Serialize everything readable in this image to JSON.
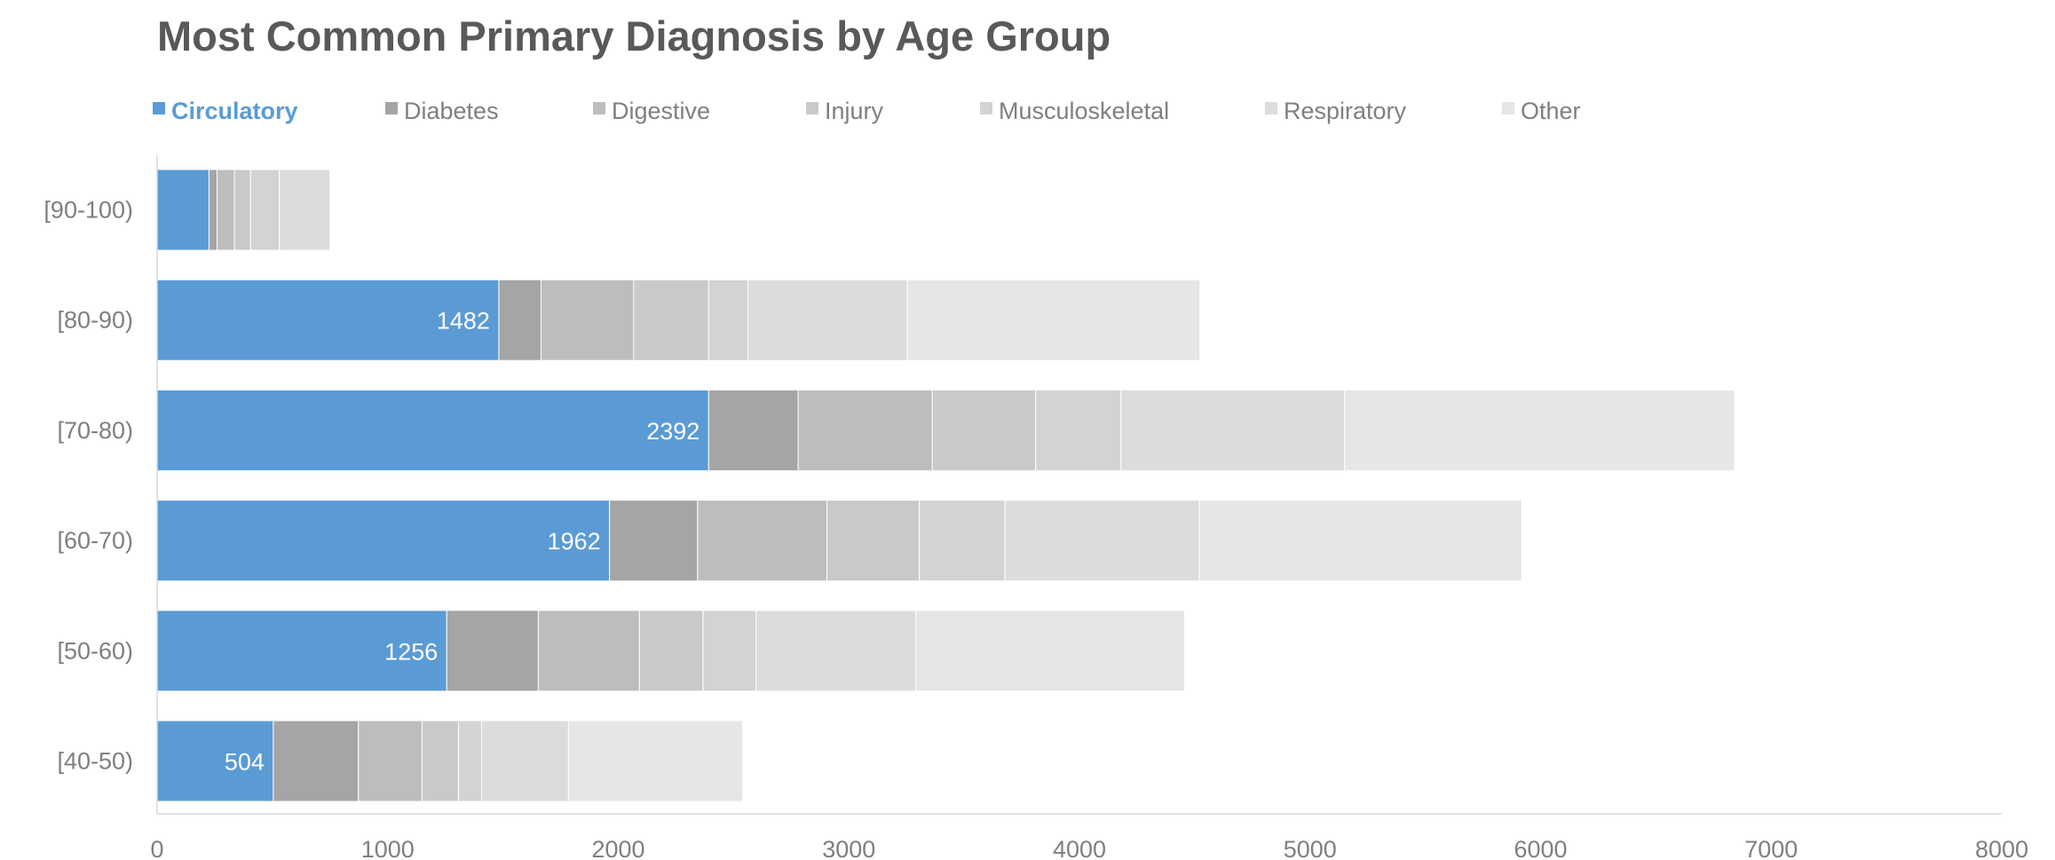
{
  "chart_data": {
    "type": "bar",
    "orientation": "horizontal",
    "stacked": true,
    "title": "Most Common Primary Diagnosis by Age Group",
    "xlabel": "",
    "ylabel": "",
    "xlim": [
      0,
      8000
    ],
    "x_ticks": [
      0,
      1000,
      2000,
      3000,
      4000,
      5000,
      6000,
      7000,
      8000
    ],
    "legend_position": "top",
    "grid": false,
    "categories": [
      "[90-100)",
      "[80-90)",
      "[70-80)",
      "[60-70)",
      "[50-60)",
      "[40-50)"
    ],
    "series": [
      {
        "name": "Circulatory",
        "color": "#5b9bd5",
        "values": [
          225,
          1482,
          2392,
          1962,
          1256,
          504
        ]
      },
      {
        "name": "Diabetes",
        "color": "#a5a5a5",
        "values": [
          35,
          183,
          388,
          382,
          397,
          369
        ]
      },
      {
        "name": "Digestive",
        "color": "#bdbdbd",
        "values": [
          75,
          402,
          582,
          561,
          439,
          276
        ]
      },
      {
        "name": "Injury",
        "color": "#c9c9c9",
        "values": [
          70,
          325,
          448,
          401,
          275,
          158
        ]
      },
      {
        "name": "Musculoskeletal",
        "color": "#d3d3d3",
        "values": [
          125,
          170,
          370,
          371,
          231,
          100
        ]
      },
      {
        "name": "Respiratory",
        "color": "#dcdcdc",
        "values": [
          220,
          692,
          970,
          843,
          693,
          377
        ]
      },
      {
        "name": "Other",
        "color": "#e6e6e6",
        "values": [
          0,
          1269,
          1691,
          1398,
          1165,
          756
        ]
      }
    ],
    "data_labels": {
      "series": "Circulatory",
      "values": [
        "",
        "1482",
        "2392",
        "1962",
        "1256",
        "504"
      ]
    }
  }
}
